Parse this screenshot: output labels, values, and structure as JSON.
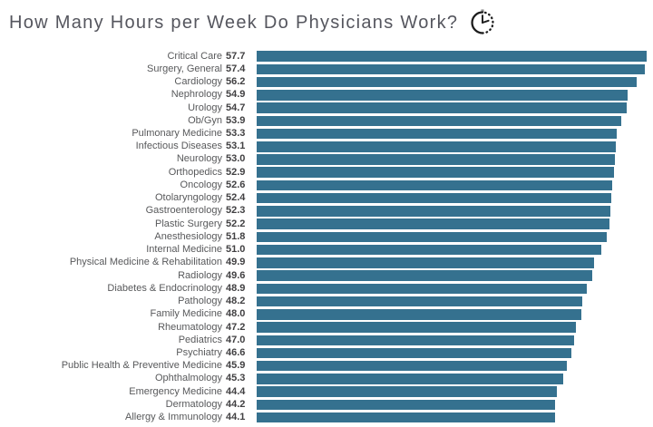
{
  "header": {
    "title": "How Many Hours per Week Do Physicians Work?",
    "icon": "clock-icon"
  },
  "chart_data": {
    "type": "bar",
    "orientation": "horizontal",
    "title": "How Many Hours per Week Do Physicians Work?",
    "xlabel": "",
    "ylabel": "",
    "xlim": [
      0,
      57.7
    ],
    "grid": false,
    "legend": false,
    "value_label_position": "left-of-bar",
    "bar_color": "#35718f",
    "label_color": "#58595b",
    "value_color": "#414042",
    "title_color": "#55565e",
    "categories": [
      "Critical Care",
      "Surgery, General",
      "Cardiology",
      "Nephrology",
      "Urology",
      "Ob/Gyn",
      "Pulmonary Medicine",
      "Infectious Diseases",
      "Neurology",
      "Orthopedics",
      "Oncology",
      "Otolaryngology",
      "Gastroenterology",
      "Plastic Surgery",
      "Anesthesiology",
      "Internal Medicine",
      "Physical Medicine & Rehabilitation",
      "Radiology",
      "Diabetes & Endocrinology",
      "Pathology",
      "Family Medicine",
      "Rheumatology",
      "Pediatrics",
      "Psychiatry",
      "Public Health & Preventive Medicine",
      "Ophthalmology",
      "Emergency Medicine",
      "Dermatology",
      "Allergy & Immunology"
    ],
    "values": [
      57.7,
      57.4,
      56.2,
      54.9,
      54.7,
      53.9,
      53.3,
      53.1,
      53.0,
      52.9,
      52.6,
      52.4,
      52.3,
      52.2,
      51.8,
      51.0,
      49.9,
      49.6,
      48.9,
      48.2,
      48.0,
      47.2,
      47.0,
      46.6,
      45.9,
      45.3,
      44.4,
      44.2,
      44.1
    ],
    "value_labels": [
      "57.7",
      "57.4",
      "56.2",
      "54.9",
      "54.7",
      "53.9",
      "53.3",
      "53.1",
      "53.0",
      "52.9",
      "52.6",
      "52.4",
      "52.3",
      "52.2",
      "51.8",
      "51.0",
      "49.9",
      "49.6",
      "48.9",
      "48.2",
      "48.0",
      "47.2",
      "47.0",
      "46.6",
      "45.9",
      "45.3",
      "44.4",
      "44.2",
      "44.1"
    ]
  }
}
